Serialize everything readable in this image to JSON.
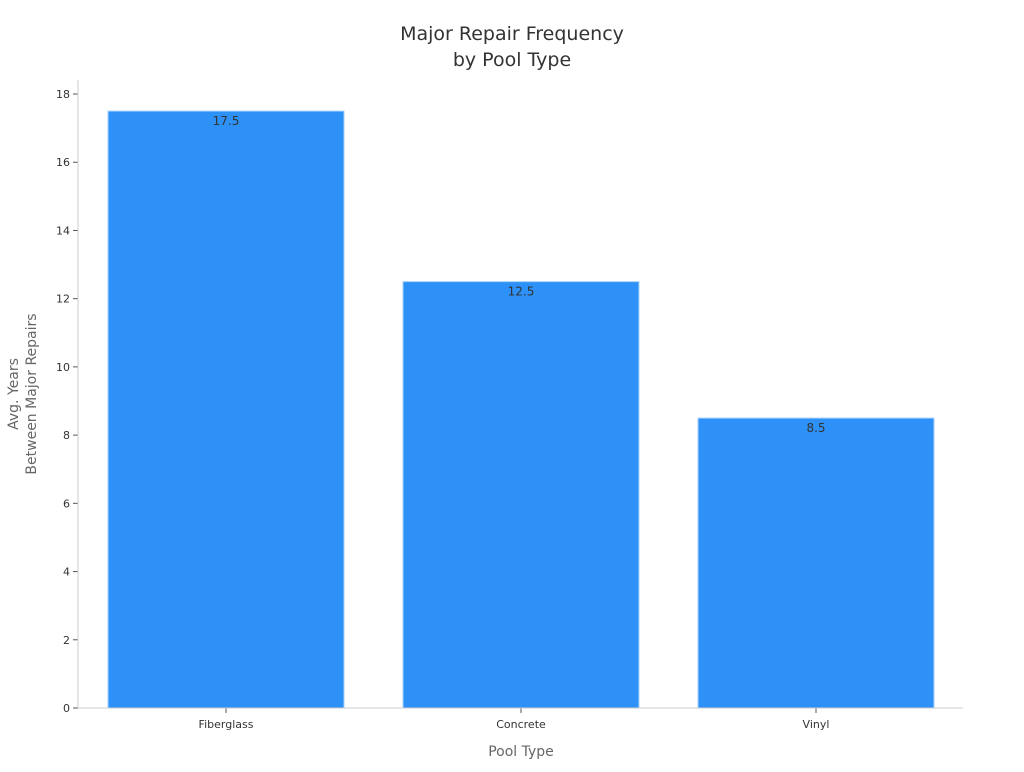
{
  "chart_data": {
    "type": "bar",
    "title": "Major Repair Frequency\nby Pool Type",
    "title_lines": [
      "Major Repair Frequency",
      "by Pool Type"
    ],
    "xlabel": "Pool Type",
    "ylabel_lines": [
      "Avg. Years",
      "Between Major Repairs"
    ],
    "categories": [
      "Fiberglass",
      "Concrete",
      "Vinyl"
    ],
    "values": [
      17.5,
      12.5,
      8.5
    ],
    "data_labels": [
      "17.5",
      "12.5",
      "8.5"
    ],
    "ylim": [
      0,
      18
    ],
    "yticks": [
      0,
      2,
      4,
      6,
      8,
      10,
      12,
      14,
      16,
      18
    ],
    "grid": false,
    "bar_color": "#2e91f7"
  }
}
